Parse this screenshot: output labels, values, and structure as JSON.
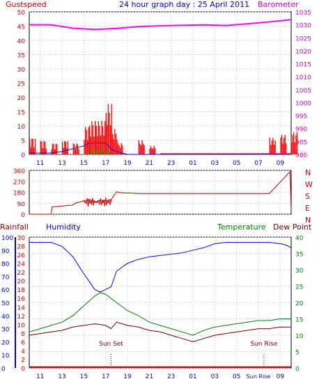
{
  "header": {
    "left_label": "Gustspeed",
    "title": "24 hour graph day : 25 April 2011",
    "right_label": "Barometer"
  },
  "colors": {
    "gust": "#ff0000",
    "wind_avg": "#0000ff",
    "wind_green": "#00a000",
    "barometer": "#ff00ff",
    "direction": "#cc0000",
    "humidity": "#0000ff",
    "temperature": "#008000",
    "dewpoint": "#660000",
    "rainfall": "#cc0000",
    "axis_left": "#cc0000",
    "axis_hum": "#0000cc",
    "axis_temp": "#008000",
    "axis_baro": "#cc00cc",
    "grid": "#c8c8c8",
    "marker": "#880000"
  },
  "compass": [
    "N",
    "W",
    "S",
    "E",
    "N"
  ],
  "bottom_labels": {
    "rainfall": "Rainfall",
    "humidity": "Humidity",
    "temperature": "Temperature",
    "dewpoint": "Dew Point"
  },
  "events": {
    "sunset": "Sun Set",
    "sunrise": "Sun Rise"
  },
  "chart_data": [
    {
      "type": "line",
      "title": "24 hour graph day : 25 April 2011",
      "x_ticks": [
        "11",
        "13",
        "15",
        "17",
        "19",
        "21",
        "23",
        "01",
        "03",
        "05",
        "07",
        "09"
      ],
      "y_left_ticks": [
        0,
        5,
        10,
        15,
        20,
        25,
        30,
        35,
        40,
        45,
        50
      ],
      "y_right_ticks": [
        980,
        985,
        990,
        995,
        1000,
        1005,
        1010,
        1015,
        1020,
        1025,
        1030,
        1035
      ],
      "ylim_left": [
        0,
        50
      ],
      "ylim_right": [
        980,
        1035
      ],
      "series": [
        {
          "name": "Gustspeed",
          "kind": "gust_bars",
          "x_hours": [
            0,
            1,
            2,
            3,
            4,
            5,
            5.5,
            6,
            6.5,
            7,
            7.5,
            8,
            9,
            10,
            11,
            12,
            13,
            14,
            15,
            16,
            17,
            18,
            19,
            20,
            21,
            22,
            23,
            24
          ],
          "values": [
            6,
            5,
            4,
            5,
            4,
            10,
            12,
            12,
            12,
            18,
            9,
            4,
            0,
            5,
            3,
            0,
            0,
            0,
            0,
            0,
            0,
            0,
            0,
            0,
            0,
            6,
            7,
            8
          ]
        },
        {
          "name": "Wind Average",
          "kind": "line",
          "x_hours": [
            0,
            1,
            2,
            3,
            4,
            5,
            5.5,
            6,
            6.5,
            7,
            7.5,
            8,
            9,
            10,
            11,
            12,
            24
          ],
          "values": [
            0.5,
            0.5,
            0.5,
            1,
            2,
            3,
            4,
            4,
            4,
            4,
            2,
            1,
            0,
            0,
            0,
            0,
            0
          ]
        },
        {
          "name": "Barometer",
          "kind": "line",
          "x_hours": [
            0,
            2,
            4,
            6,
            8,
            10,
            12,
            14,
            16,
            18,
            20,
            22,
            24
          ],
          "values": [
            1030,
            1030,
            1028.7,
            1028.2,
            1028.6,
            1029.3,
            1029.6,
            1029.8,
            1030,
            1029.7,
            1030.4,
            1031.1,
            1032
          ]
        }
      ]
    },
    {
      "type": "line",
      "ylabel": "",
      "y_ticks": [
        0,
        90,
        180,
        270,
        360
      ],
      "ylim": [
        0,
        360
      ],
      "series": [
        {
          "name": "Wind Direction",
          "x_hours": [
            0,
            2,
            2.1,
            4,
            4.2,
            5,
            5.5,
            6,
            6.5,
            7,
            7.5,
            8,
            8.5,
            9,
            10,
            12,
            14,
            16,
            18,
            20,
            22,
            23.9,
            24
          ],
          "values": [
            0,
            0,
            60,
            75,
            90,
            110,
            120,
            100,
            115,
            110,
            120,
            185,
            175,
            175,
            170,
            170,
            170,
            170,
            170,
            170,
            170,
            350,
            20
          ]
        }
      ]
    },
    {
      "type": "line",
      "x_ticks": [
        "11",
        "13",
        "15",
        "17",
        "19",
        "21",
        "23",
        "01",
        "03",
        "05",
        "Sun Rise",
        "09"
      ],
      "y_left_ticks": [
        0,
        10,
        20,
        30,
        40,
        50,
        60,
        70,
        80,
        90,
        100
      ],
      "y_left2_ticks": [
        0,
        2,
        4,
        6,
        8,
        10,
        12,
        14,
        16,
        18,
        20,
        22,
        24,
        26,
        28,
        30
      ],
      "y_right_ticks": [
        0,
        5,
        10,
        15,
        20,
        25,
        30,
        35,
        40
      ],
      "ylim_humidity": [
        0,
        100
      ],
      "ylim_temperature": [
        0,
        40
      ],
      "series": [
        {
          "name": "Humidity",
          "x_hours": [
            0,
            1,
            2,
            3,
            4,
            5,
            6,
            6.5,
            7,
            7.5,
            8,
            9,
            10,
            11,
            12,
            13,
            14,
            15,
            16,
            17,
            18,
            19,
            20,
            21,
            22,
            23,
            23.5,
            24
          ],
          "values": [
            96,
            96,
            96,
            93,
            85,
            72,
            60,
            58,
            60,
            62,
            74,
            80,
            83,
            85,
            86,
            87,
            88,
            90,
            92,
            95,
            96,
            96,
            96,
            96,
            96,
            95,
            94,
            92
          ]
        },
        {
          "name": "Temperature",
          "x_hours": [
            0,
            1,
            2,
            3,
            4,
            5,
            6,
            6.5,
            7,
            8,
            9,
            10,
            11,
            12,
            13,
            14,
            15,
            16,
            17,
            18,
            19,
            20,
            21,
            22,
            23,
            24
          ],
          "values": [
            11,
            12,
            13,
            14,
            16,
            19,
            22,
            23,
            22.5,
            20,
            17.5,
            16,
            14,
            13,
            12,
            11,
            10,
            11.5,
            12.5,
            13,
            13.5,
            14,
            14.5,
            14.5,
            15,
            15
          ]
        },
        {
          "name": "Dew Point",
          "x_hours": [
            0,
            1,
            2,
            3,
            4,
            5,
            6,
            7,
            7.5,
            8,
            9,
            10,
            11,
            12,
            13,
            14,
            15,
            16,
            17,
            18,
            19,
            20,
            21,
            22,
            23,
            24
          ],
          "values": [
            10,
            10.5,
            11,
            11.5,
            12.5,
            13,
            13.5,
            13,
            12,
            14,
            13,
            12.5,
            11.5,
            11,
            10,
            9,
            8,
            9,
            10,
            10.5,
            11,
            11.5,
            12,
            12,
            12.5,
            12.5
          ]
        },
        {
          "name": "Rainfall",
          "x_hours": [
            0,
            24
          ],
          "values": [
            0.2,
            0.2
          ]
        }
      ],
      "events": [
        {
          "label": "Sun Set",
          "x_hour": 7.5
        },
        {
          "label": "Sun Rise",
          "x_hour": 21.5
        }
      ]
    }
  ]
}
